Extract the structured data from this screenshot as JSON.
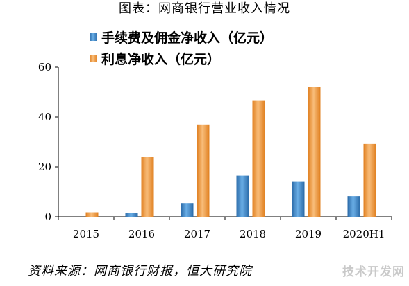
{
  "header": {
    "title": "图表：网商银行营业收入情况"
  },
  "footer": {
    "source": "资料来源：网商银行财报，恒大研究院",
    "watermark": "技术开发网"
  },
  "colors": {
    "fee": "#3c86c6",
    "interest": "#f09a3e",
    "axis": "#000000"
  },
  "chart_data": {
    "type": "bar",
    "categories": [
      "2015",
      "2016",
      "2017",
      "2018",
      "2019",
      "2020H1"
    ],
    "series": [
      {
        "name": "手续费及佣金净收入（亿元）",
        "values": [
          0,
          1.5,
          5.5,
          16.5,
          14,
          8.3
        ]
      },
      {
        "name": "利息净收入（亿元）",
        "values": [
          1.8,
          24,
          37,
          46.5,
          52,
          29.2
        ]
      }
    ],
    "yticks": [
      0,
      20,
      40,
      60
    ],
    "ylim": [
      0,
      60
    ],
    "grid": false,
    "legend_position": "top-center"
  }
}
